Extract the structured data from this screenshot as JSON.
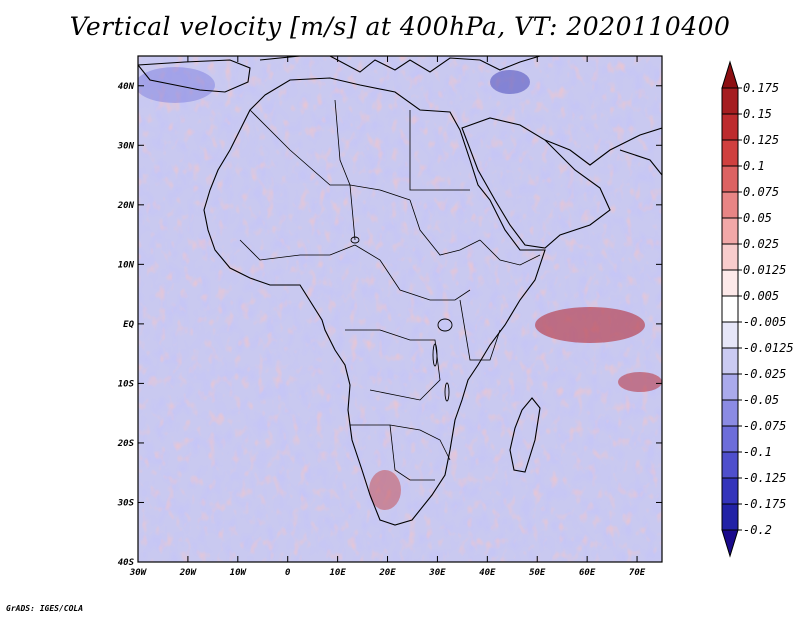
{
  "title": "Vertical velocity [m/s] at 400hPa, VT: 2020110400",
  "credit": "GrADS: IGES/COLA",
  "map": {
    "lon_range": [
      -30,
      75
    ],
    "lat_range": [
      -40,
      45
    ],
    "lon_ticks": [
      "30W",
      "20W",
      "10W",
      "0",
      "10E",
      "20E",
      "30E",
      "40E",
      "50E",
      "60E",
      "70E"
    ],
    "lat_ticks": [
      "40N",
      "30N",
      "20N",
      "10N",
      "EQ",
      "10S",
      "20S",
      "30S",
      "40S"
    ]
  },
  "colorbar": {
    "levels": [
      "0.175",
      "0.15",
      "0.125",
      "0.1",
      "0.075",
      "0.05",
      "0.025",
      "0.0125",
      "0.005",
      "-0.005",
      "-0.0125",
      "-0.025",
      "-0.05",
      "-0.075",
      "-0.1",
      "-0.125",
      "-0.175",
      "-0.2"
    ],
    "colors": [
      "#8c0f12",
      "#a51d20",
      "#bd2b2e",
      "#d0403f",
      "#dd6262",
      "#e88585",
      "#f2a8a8",
      "#f8cccc",
      "#fde9e9",
      "#ffffff",
      "#e6e6f8",
      "#cacaf2",
      "#aaaaec",
      "#8b8be4",
      "#6d6dda",
      "#4f4fcc",
      "#3434bb",
      "#2222a6",
      "#1a0a8c"
    ]
  }
}
